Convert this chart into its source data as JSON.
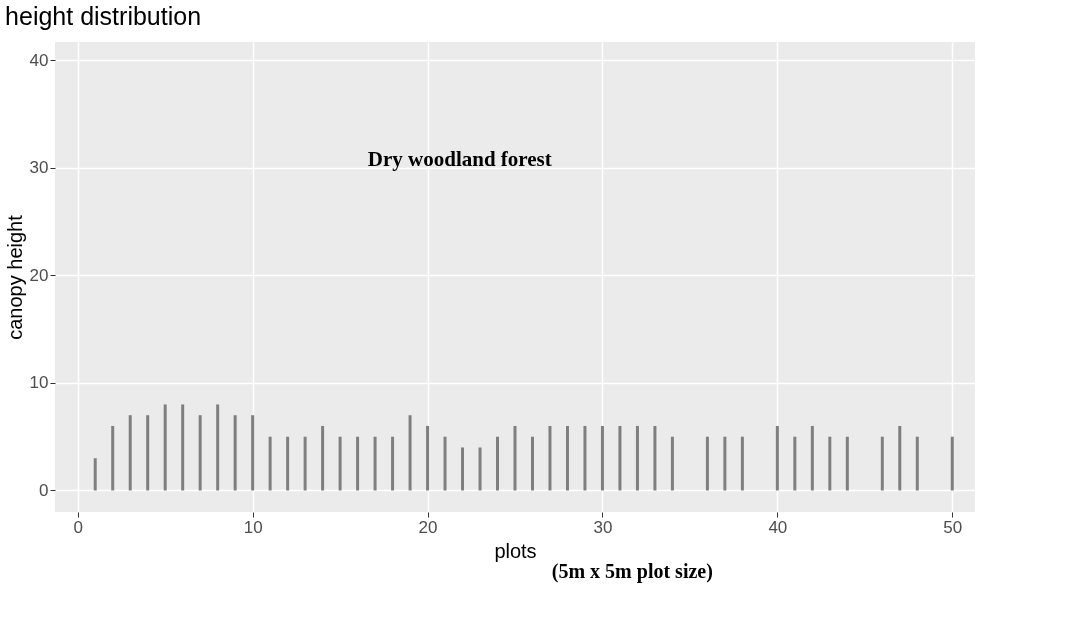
{
  "chart_data": {
    "type": "bar",
    "title": "height distribution",
    "xlabel": "plots",
    "ylabel": "canopy height",
    "annotations": [
      "Dry woodland forest",
      "(5m x 5m plot size)"
    ],
    "x": [
      1,
      2,
      3,
      4,
      5,
      6,
      7,
      8,
      9,
      10,
      11,
      12,
      13,
      14,
      15,
      16,
      17,
      18,
      19,
      20,
      21,
      22,
      23,
      24,
      25,
      26,
      27,
      28,
      29,
      30,
      31,
      32,
      33,
      34,
      36,
      37,
      38,
      40,
      41,
      42,
      43,
      44,
      46,
      47,
      48,
      50
    ],
    "series": [
      {
        "color": "#7f7f7f",
        "values": [
          3,
          6,
          7,
          7,
          8,
          8,
          7,
          8,
          7,
          7,
          5,
          5,
          5,
          6,
          5,
          5,
          5,
          5,
          7,
          6,
          5,
          4,
          4,
          5,
          6,
          5,
          6,
          6,
          6,
          6,
          6,
          6,
          6,
          5,
          5,
          5,
          5,
          6,
          5,
          6,
          5,
          5,
          5,
          6,
          5,
          5
        ]
      }
    ],
    "xlim": [
      -1.3,
      51.3
    ],
    "ylim": [
      -2,
      41.7
    ],
    "xticks": [
      0,
      10,
      20,
      30,
      40,
      50
    ],
    "yticks": [
      0,
      10,
      20,
      30,
      40
    ],
    "grid": true
  }
}
